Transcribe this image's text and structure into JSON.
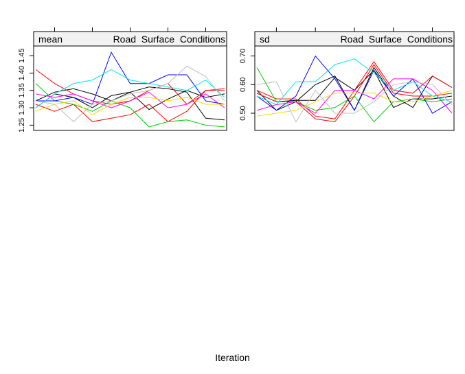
{
  "xlabel": "Iteration",
  "chart_data": [
    {
      "type": "line",
      "strip_left": "mean",
      "strip_right": "Road  Surface  Conditions",
      "ylim": [
        1.235,
        1.478
      ],
      "yticks": [
        1.25,
        1.3,
        1.35,
        1.4,
        1.45
      ],
      "ytick_labels": [
        "1.25",
        "1.30",
        "1.35",
        "1.40",
        "1.45"
      ],
      "x": [
        1,
        2,
        3,
        4,
        5,
        6,
        7,
        8,
        9,
        10,
        11
      ],
      "xticks": [
        2,
        4,
        6,
        8,
        10
      ],
      "series": [
        {
          "color": "#000000",
          "values": [
            1.32,
            1.345,
            1.355,
            1.34,
            1.32,
            1.345,
            1.295,
            1.325,
            1.35,
            1.33,
            1.34
          ]
        },
        {
          "color": "#000000",
          "values": [
            1.3,
            1.34,
            1.33,
            1.3,
            1.335,
            1.345,
            1.36,
            1.355,
            1.345,
            1.27,
            1.265
          ]
        },
        {
          "color": "#ff0000",
          "values": [
            1.41,
            1.37,
            1.34,
            1.32,
            1.31,
            1.32,
            1.35,
            1.37,
            1.31,
            1.35,
            1.355
          ]
        },
        {
          "color": "#ff0000",
          "values": [
            1.31,
            1.29,
            1.31,
            1.26,
            1.27,
            1.28,
            1.31,
            1.26,
            1.29,
            1.35,
            1.35
          ]
        },
        {
          "color": "#00cd00",
          "values": [
            1.37,
            1.32,
            1.31,
            1.29,
            1.32,
            1.3,
            1.245,
            1.26,
            1.265,
            1.25,
            1.245
          ]
        },
        {
          "color": "#0000ff",
          "values": [
            1.32,
            1.32,
            1.33,
            1.31,
            1.46,
            1.37,
            1.37,
            1.395,
            1.395,
            1.32,
            1.31
          ]
        },
        {
          "color": "#00e5ee",
          "values": [
            1.3,
            1.34,
            1.37,
            1.38,
            1.41,
            1.38,
            1.37,
            1.36,
            1.35,
            1.38,
            1.33
          ]
        },
        {
          "color": "#ff00ff",
          "values": [
            1.34,
            1.33,
            1.34,
            1.32,
            1.3,
            1.32,
            1.345,
            1.3,
            1.31,
            1.34,
            1.3
          ]
        },
        {
          "color": "#ffd700",
          "values": [
            1.29,
            1.31,
            1.32,
            1.28,
            1.31,
            1.33,
            1.33,
            1.32,
            1.33,
            1.31,
            1.31
          ]
        },
        {
          "color": "#bebebe",
          "values": [
            1.32,
            1.31,
            1.26,
            1.31,
            1.32,
            1.34,
            1.35,
            1.37,
            1.42,
            1.39,
            1.32
          ]
        }
      ]
    },
    {
      "type": "line",
      "strip_left": "sd",
      "strip_right": "Road  Surface  Conditions",
      "ylim": [
        0.44,
        0.735
      ],
      "yticks": [
        0.5,
        0.6,
        0.7
      ],
      "ytick_labels": [
        "0.50",
        "0.60",
        "0.70"
      ],
      "x": [
        1,
        2,
        3,
        4,
        5,
        6,
        7,
        8,
        9,
        10,
        11
      ],
      "xticks": [
        2,
        4,
        6,
        8,
        10
      ],
      "series": [
        {
          "color": "#000000",
          "values": [
            0.58,
            0.51,
            0.54,
            0.6,
            0.63,
            0.51,
            0.66,
            0.56,
            0.52,
            0.63,
            0.59
          ]
        },
        {
          "color": "#000000",
          "values": [
            0.57,
            0.54,
            0.545,
            0.545,
            0.625,
            0.58,
            0.65,
            0.52,
            0.55,
            0.55,
            0.56
          ]
        },
        {
          "color": "#ff0000",
          "values": [
            0.58,
            0.55,
            0.55,
            0.49,
            0.48,
            0.58,
            0.68,
            0.58,
            0.57,
            0.63,
            0.59
          ]
        },
        {
          "color": "#ff0000",
          "values": [
            0.57,
            0.54,
            0.54,
            0.48,
            0.47,
            0.56,
            0.67,
            0.57,
            0.56,
            0.56,
            0.57
          ]
        },
        {
          "color": "#00cd00",
          "values": [
            0.66,
            0.54,
            0.54,
            0.51,
            0.52,
            0.56,
            0.47,
            0.54,
            0.55,
            0.54,
            0.55
          ]
        },
        {
          "color": "#0000ff",
          "values": [
            0.56,
            0.51,
            0.56,
            0.7,
            0.62,
            0.51,
            0.65,
            0.56,
            0.62,
            0.5,
            0.54
          ]
        },
        {
          "color": "#00e5ee",
          "values": [
            0.56,
            0.53,
            0.61,
            0.61,
            0.67,
            0.69,
            0.64,
            0.58,
            0.61,
            0.56,
            0.54
          ]
        },
        {
          "color": "#ff00ff",
          "values": [
            0.51,
            0.53,
            0.54,
            0.5,
            0.58,
            0.58,
            0.55,
            0.62,
            0.62,
            0.58,
            0.5
          ]
        },
        {
          "color": "#ffd700",
          "values": [
            0.49,
            0.5,
            0.51,
            0.54,
            0.57,
            0.57,
            0.57,
            0.54,
            0.54,
            0.56,
            0.58
          ]
        },
        {
          "color": "#bebebe",
          "values": [
            0.6,
            0.61,
            0.47,
            0.58,
            0.5,
            0.5,
            0.54,
            0.6,
            0.61,
            0.6,
            0.53
          ]
        }
      ]
    }
  ]
}
